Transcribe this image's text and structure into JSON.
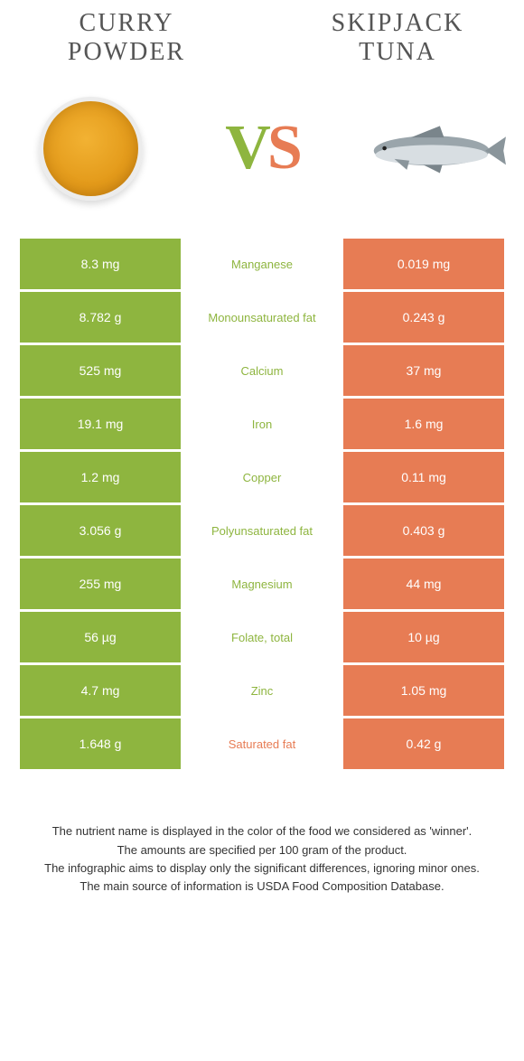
{
  "colors": {
    "green": "#8eb53f",
    "orange": "#e77c54",
    "green_text": "#8eb53f",
    "orange_text": "#e77c54",
    "white": "#ffffff",
    "bg": "#ffffff",
    "title": "#555555",
    "footer": "#333333"
  },
  "header": {
    "left_title": "CURRY POWDER",
    "right_title": "SKIPJACK TUNA"
  },
  "vs": {
    "v": "V",
    "s": "S"
  },
  "rows": [
    {
      "left": "8.3 mg",
      "label": "Manganese",
      "right": "0.019 mg",
      "winner": "left"
    },
    {
      "left": "8.782 g",
      "label": "Monounsaturated fat",
      "right": "0.243 g",
      "winner": "left"
    },
    {
      "left": "525 mg",
      "label": "Calcium",
      "right": "37 mg",
      "winner": "left"
    },
    {
      "left": "19.1 mg",
      "label": "Iron",
      "right": "1.6 mg",
      "winner": "left"
    },
    {
      "left": "1.2 mg",
      "label": "Copper",
      "right": "0.11 mg",
      "winner": "left"
    },
    {
      "left": "3.056 g",
      "label": "Polyunsaturated fat",
      "right": "0.403 g",
      "winner": "left"
    },
    {
      "left": "255 mg",
      "label": "Magnesium",
      "right": "44 mg",
      "winner": "left"
    },
    {
      "left": "56 µg",
      "label": "Folate, total",
      "right": "10 µg",
      "winner": "left"
    },
    {
      "left": "4.7 mg",
      "label": "Zinc",
      "right": "1.05 mg",
      "winner": "left"
    },
    {
      "left": "1.648 g",
      "label": "Saturated fat",
      "right": "0.42 g",
      "winner": "right"
    }
  ],
  "footer": {
    "l1": "The nutrient name is displayed in the color of the food we considered as 'winner'.",
    "l2": "The amounts are specified per 100 gram of the product.",
    "l3": "The infographic aims to display only the significant differences, ignoring minor ones.",
    "l4": "The main source of information is USDA Food Composition Database."
  }
}
